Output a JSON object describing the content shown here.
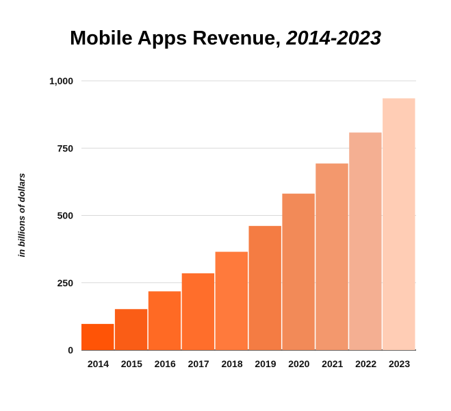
{
  "chart_data": {
    "type": "bar",
    "title": "Mobile Apps Revenue,",
    "subtitle": "2014-2023",
    "xlabel": "",
    "ylabel": "in billions of dollars",
    "categories": [
      "2014",
      "2015",
      "2016",
      "2017",
      "2018",
      "2019",
      "2020",
      "2021",
      "2022",
      "2023"
    ],
    "values": [
      97,
      152,
      218,
      285,
      365,
      461,
      581,
      693,
      808,
      935
    ],
    "ylim": [
      0,
      1000
    ],
    "yticks": [
      0,
      250,
      500,
      750,
      1000
    ],
    "ytick_labels": [
      "0",
      "250",
      "500",
      "750",
      "1,000"
    ],
    "grid": true,
    "legend": "none",
    "colors": [
      "#ff5406",
      "#fa5d16",
      "#ff6a24",
      "#ff6e2b",
      "#ff7a3c",
      "#f47c43",
      "#f28a58",
      "#f3986d",
      "#f4af92",
      "#ffcdb5"
    ]
  }
}
